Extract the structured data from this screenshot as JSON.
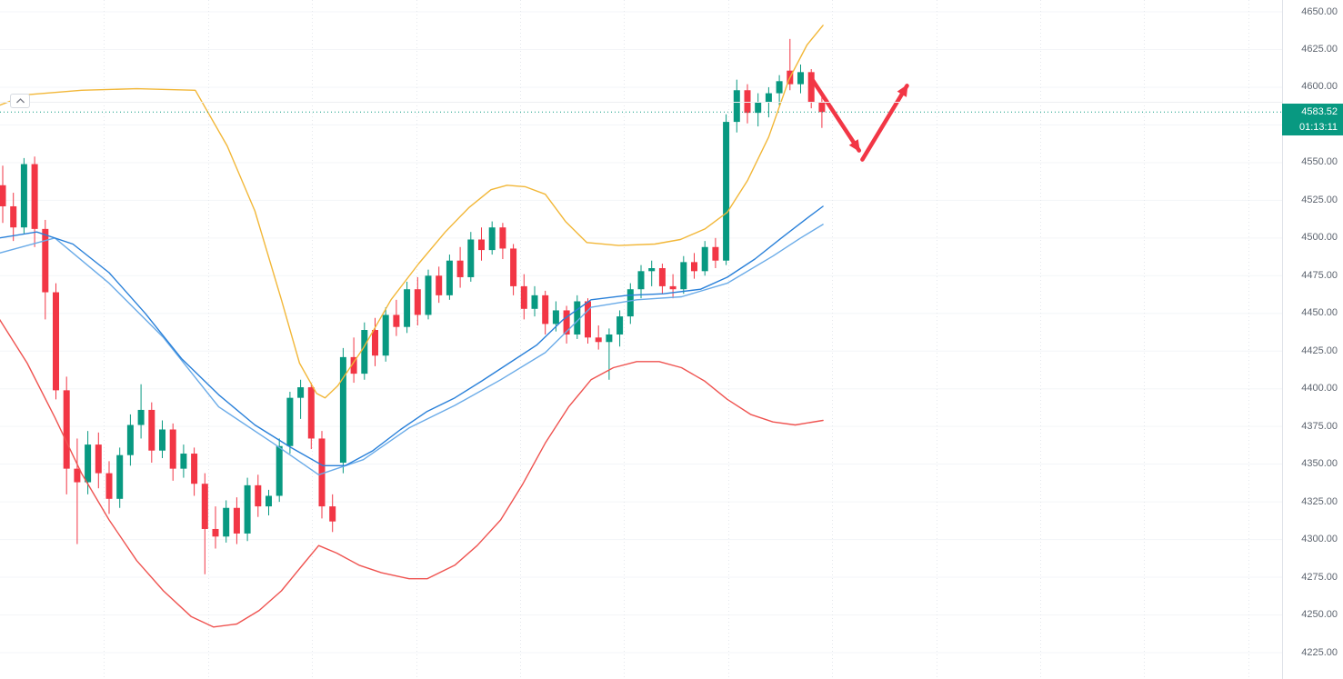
{
  "price_axis": {
    "last_price": "4583.52",
    "countdown": "01:13:11",
    "labels": [
      "4650.00",
      "4625.00",
      "4600.00",
      "4550.00",
      "4525.00",
      "4500.00",
      "4475.00",
      "4450.00",
      "4425.00",
      "4400.00",
      "4375.00",
      "4350.00",
      "4325.00",
      "4300.00",
      "4275.00",
      "4250.00",
      "4225.00"
    ],
    "text_color": "#5d646f",
    "badge_color": "#089981",
    "countdown_color": "#089981"
  },
  "legend_toggle": {
    "icon": "chevron-up"
  },
  "chart_data": {
    "type": "candlestick",
    "title": "",
    "ylim": [
      4225,
      4650
    ],
    "grid": true,
    "last_price": 4583.52,
    "y_axis_ticks": [
      4650,
      4625,
      4600,
      4575,
      4550,
      4525,
      4500,
      4475,
      4450,
      4425,
      4400,
      4375,
      4350,
      4325,
      4300,
      4275,
      4250,
      4225
    ],
    "colors": {
      "up": "#089981",
      "down": "#f23645"
    },
    "candles": [
      [
        4535,
        4548,
        4510,
        4521
      ],
      [
        4521,
        4530,
        4498,
        4507
      ],
      [
        4507,
        4553,
        4503,
        4549
      ],
      [
        4549,
        4554,
        4494,
        4506
      ],
      [
        4506,
        4512,
        4446,
        4464
      ],
      [
        4464,
        4470,
        4393,
        4399
      ],
      [
        4399,
        4408,
        4330,
        4347
      ],
      [
        4347,
        4367,
        4297,
        4338
      ],
      [
        4338,
        4372,
        4330,
        4363
      ],
      [
        4363,
        4371,
        4334,
        4344
      ],
      [
        4344,
        4352,
        4317,
        4327
      ],
      [
        4327,
        4361,
        4321,
        4356
      ],
      [
        4356,
        4383,
        4349,
        4376
      ],
      [
        4376,
        4403,
        4367,
        4386
      ],
      [
        4386,
        4391,
        4351,
        4359
      ],
      [
        4359,
        4379,
        4354,
        4373
      ],
      [
        4373,
        4377,
        4339,
        4347
      ],
      [
        4347,
        4363,
        4341,
        4357
      ],
      [
        4357,
        4361,
        4329,
        4337
      ],
      [
        4337,
        4344,
        4277,
        4307
      ],
      [
        4307,
        4322,
        4294,
        4302
      ],
      [
        4302,
        4326,
        4298,
        4321
      ],
      [
        4321,
        4328,
        4297,
        4304
      ],
      [
        4304,
        4341,
        4299,
        4336
      ],
      [
        4336,
        4343,
        4315,
        4322
      ],
      [
        4322,
        4333,
        4316,
        4329
      ],
      [
        4329,
        4367,
        4325,
        4362
      ],
      [
        4362,
        4398,
        4357,
        4394
      ],
      [
        4394,
        4406,
        4380,
        4401
      ],
      [
        4401,
        4404,
        4360,
        4367
      ],
      [
        4367,
        4372,
        4314,
        4322
      ],
      [
        4322,
        4330,
        4305,
        4312
      ],
      [
        4351,
        4427,
        4344,
        4421
      ],
      [
        4421,
        4434,
        4404,
        4410
      ],
      [
        4410,
        4444,
        4406,
        4439
      ],
      [
        4439,
        4447,
        4415,
        4422
      ],
      [
        4422,
        4454,
        4418,
        4449
      ],
      [
        4449,
        4459,
        4435,
        4441
      ],
      [
        4441,
        4471,
        4437,
        4466
      ],
      [
        4466,
        4474,
        4442,
        4449
      ],
      [
        4449,
        4479,
        4446,
        4475
      ],
      [
        4475,
        4481,
        4457,
        4462
      ],
      [
        4462,
        4489,
        4459,
        4485
      ],
      [
        4485,
        4494,
        4467,
        4474
      ],
      [
        4474,
        4504,
        4471,
        4499
      ],
      [
        4499,
        4507,
        4485,
        4492
      ],
      [
        4492,
        4511,
        4489,
        4507
      ],
      [
        4507,
        4510,
        4486,
        4493
      ],
      [
        4493,
        4496,
        4462,
        4468
      ],
      [
        4468,
        4476,
        4446,
        4453
      ],
      [
        4453,
        4468,
        4448,
        4462
      ],
      [
        4462,
        4465,
        4436,
        4443
      ],
      [
        4443,
        4458,
        4438,
        4452
      ],
      [
        4452,
        4455,
        4430,
        4436
      ],
      [
        4436,
        4462,
        4433,
        4458
      ],
      [
        4458,
        4460,
        4430,
        4434
      ],
      [
        4434,
        4442,
        4426,
        4431
      ],
      [
        4431,
        4440,
        4406,
        4436
      ],
      [
        4436,
        4452,
        4428,
        4448
      ],
      [
        4448,
        4470,
        4443,
        4466
      ],
      [
        4466,
        4482,
        4460,
        4478
      ],
      [
        4478,
        4485,
        4468,
        4480
      ],
      [
        4480,
        4483,
        4463,
        4468
      ],
      [
        4468,
        4476,
        4460,
        4466
      ],
      [
        4466,
        4488,
        4463,
        4484
      ],
      [
        4484,
        4490,
        4473,
        4478
      ],
      [
        4478,
        4498,
        4475,
        4494
      ],
      [
        4494,
        4500,
        4480,
        4485
      ],
      [
        4485,
        4582,
        4482,
        4577
      ],
      [
        4577,
        4605,
        4570,
        4598
      ],
      [
        4598,
        4602,
        4576,
        4583
      ],
      [
        4583,
        4596,
        4574,
        4590
      ],
      [
        4590,
        4600,
        4580,
        4596
      ],
      [
        4596,
        4608,
        4588,
        4604
      ],
      [
        4611,
        4632,
        4598,
        4602
      ],
      [
        4602,
        4615,
        4596,
        4610
      ],
      [
        4610,
        4612,
        4586,
        4590
      ],
      [
        4590,
        4595,
        4573,
        4583.52
      ]
    ],
    "overlays": [
      {
        "name": "bollinger-lower-band-line",
        "color": "#ef5350",
        "points": [
          [
            -0.3,
            4446
          ],
          [
            2.3,
            4417
          ],
          [
            4.9,
            4381
          ],
          [
            7.4,
            4344
          ],
          [
            10,
            4313
          ],
          [
            12.6,
            4286
          ],
          [
            15.1,
            4266
          ],
          [
            17.7,
            4249
          ],
          [
            19.8,
            4242
          ],
          [
            22,
            4244
          ],
          [
            24.1,
            4253
          ],
          [
            26.2,
            4266
          ],
          [
            28.4,
            4285
          ],
          [
            29.7,
            4296
          ],
          [
            31.4,
            4291
          ],
          [
            33.5,
            4283
          ],
          [
            35.6,
            4278
          ],
          [
            38.2,
            4274
          ],
          [
            39.9,
            4274
          ],
          [
            42.5,
            4283
          ],
          [
            44.6,
            4296
          ],
          [
            46.8,
            4313
          ],
          [
            48.9,
            4337
          ],
          [
            51,
            4364
          ],
          [
            53.2,
            4388
          ],
          [
            55.3,
            4406
          ],
          [
            57.4,
            4414
          ],
          [
            59.6,
            4418
          ],
          [
            61.7,
            4418
          ],
          [
            63.8,
            4414
          ],
          [
            66,
            4405
          ],
          [
            68.1,
            4393
          ],
          [
            70.3,
            4383
          ],
          [
            72.4,
            4378
          ],
          [
            74.5,
            4376
          ],
          [
            77.1,
            4379
          ]
        ]
      },
      {
        "name": "bollinger-upper-band-line",
        "color": "#f2b738",
        "points": [
          [
            -0.3,
            4588
          ],
          [
            2.3,
            4595
          ],
          [
            7.4,
            4598
          ],
          [
            12.6,
            4599
          ],
          [
            18.1,
            4598
          ],
          [
            21.1,
            4561
          ],
          [
            23.7,
            4518
          ],
          [
            26.2,
            4459
          ],
          [
            27.9,
            4417
          ],
          [
            29.5,
            4397
          ],
          [
            30.3,
            4394
          ],
          [
            31.5,
            4402
          ],
          [
            33.9,
            4427
          ],
          [
            36.5,
            4459
          ],
          [
            39.1,
            4483
          ],
          [
            41.6,
            4504
          ],
          [
            43.8,
            4520
          ],
          [
            45.9,
            4532
          ],
          [
            47.4,
            4535
          ],
          [
            49.1,
            4534
          ],
          [
            51,
            4529
          ],
          [
            52.9,
            4511
          ],
          [
            54.9,
            4497
          ],
          [
            57.9,
            4495
          ],
          [
            61.3,
            4496
          ],
          [
            63.7,
            4499
          ],
          [
            66,
            4506
          ],
          [
            68.1,
            4517
          ],
          [
            70,
            4538
          ],
          [
            72,
            4567
          ],
          [
            73.9,
            4605
          ],
          [
            75.6,
            4628
          ],
          [
            77.1,
            4641
          ]
        ]
      },
      {
        "name": "ema-line",
        "color": "#6aabe8",
        "points": [
          [
            -0.3,
            4490
          ],
          [
            4.9,
            4500
          ],
          [
            10,
            4470
          ],
          [
            15.1,
            4434
          ],
          [
            20.3,
            4388
          ],
          [
            25.4,
            4364
          ],
          [
            29.7,
            4343
          ],
          [
            33.9,
            4353
          ],
          [
            38.2,
            4374
          ],
          [
            42.5,
            4389
          ],
          [
            46.8,
            4406
          ],
          [
            51,
            4424
          ],
          [
            55.3,
            4454
          ],
          [
            59.6,
            4459
          ],
          [
            63.8,
            4461
          ],
          [
            68.1,
            4470
          ],
          [
            72.4,
            4488
          ],
          [
            75,
            4500
          ],
          [
            77.1,
            4509
          ]
        ]
      },
      {
        "name": "ma-basis-line",
        "color": "#2980d9",
        "points": [
          [
            -0.3,
            4500
          ],
          [
            3.2,
            4504
          ],
          [
            6.6,
            4496
          ],
          [
            10,
            4477
          ],
          [
            13.4,
            4450
          ],
          [
            16.8,
            4420
          ],
          [
            20.3,
            4396
          ],
          [
            23.7,
            4376
          ],
          [
            27.1,
            4361
          ],
          [
            30.1,
            4349
          ],
          [
            32.2,
            4349
          ],
          [
            34.8,
            4359
          ],
          [
            37.4,
            4373
          ],
          [
            39.9,
            4385
          ],
          [
            42.5,
            4394
          ],
          [
            45,
            4405
          ],
          [
            47.6,
            4417
          ],
          [
            50.2,
            4429
          ],
          [
            52.7,
            4446
          ],
          [
            55.3,
            4459
          ],
          [
            58.7,
            4462
          ],
          [
            62.1,
            4463
          ],
          [
            65.6,
            4466
          ],
          [
            68.1,
            4474
          ],
          [
            70.7,
            4486
          ],
          [
            73.2,
            4500
          ],
          [
            75.4,
            4512
          ],
          [
            77.1,
            4521
          ]
        ]
      }
    ],
    "annotations": {
      "color": "#f23645",
      "arrows": [
        {
          "name": "down-arrow",
          "from": [
            76.1,
            4605
          ],
          "to": [
            80.5,
            4558
          ]
        },
        {
          "name": "up-arrow",
          "from": [
            80.8,
            4552
          ],
          "to": [
            85.0,
            4601
          ]
        }
      ]
    }
  }
}
